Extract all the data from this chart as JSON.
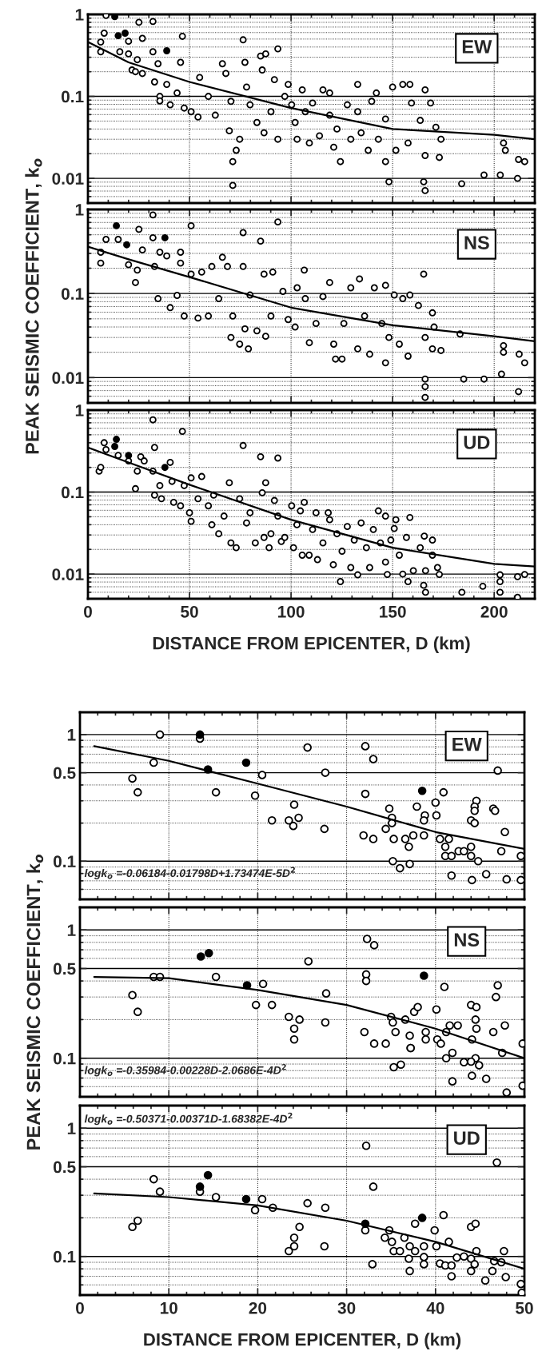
{
  "chart_data": [
    {
      "type": "scatter",
      "xlim": [
        0,
        220
      ],
      "xticks": [
        0,
        50,
        100,
        150,
        200
      ],
      "ylim": [
        0.005,
        1
      ],
      "yticks": [
        1,
        0.1,
        0.01
      ],
      "log": "y",
      "grid": true,
      "marker": "circle",
      "tick_labels": "y",
      "annotations": [
        "EW"
      ],
      "series": [
        {
          "type": "scatter",
          "color": "#ffffff",
          "x": [
            6.3,
            6.3,
            8,
            8.9,
            15.7,
            20,
            20,
            24.3,
            21.7,
            23.4,
            26.8,
            25.1,
            26.8,
            32,
            32,
            32.8,
            34.5,
            35.4,
            35.4,
            38.8,
            40.5,
            43.9,
            45.6,
            46.5,
            47.4,
            50.8,
            54.2,
            55,
            59.3,
            62.7,
            66.2,
            67.9,
            70.4,
            69.6,
            71.3,
            71.3,
            73,
            76.4,
            77.3,
            74.7,
            78.1,
            79.8,
            83.2,
            85,
            85.8,
            87.5,
            86.7,
            90.1,
            91.8,
            93.5,
            93.5,
            96.9,
            98.6,
            100.3,
            102,
            103,
            105.5,
            107,
            109,
            110.6,
            114,
            115.7,
            119,
            119,
            121,
            122.6,
            124.3,
            127.7,
            129.4,
            132.8,
            132.8,
            134.5,
            138,
            139.7,
            142,
            143,
            146.5,
            146.5,
            148.2,
            150,
            151.6,
            155,
            158.5,
            157.6,
            159.3,
            163.6,
            166,
            168.7,
            166,
            165.3,
            166,
            171.3,
            173.8,
            173,
            184,
            195,
            203,
            204.6,
            205.5,
            211.5,
            212,
            215
          ],
          "values": [
            0.46,
            0.35,
            0.59,
            0.97,
            0.35,
            0.47,
            0.33,
            0.28,
            0.21,
            0.2,
            0.19,
            0.8,
            0.51,
            0.82,
            0.35,
            0.15,
            0.25,
            0.1,
            0.088,
            0.14,
            0.079,
            0.11,
            0.26,
            0.54,
            0.072,
            0.065,
            0.056,
            0.17,
            0.1,
            0.059,
            0.25,
            0.19,
            0.087,
            0.038,
            0.016,
            0.0082,
            0.022,
            0.49,
            0.26,
            0.03,
            0.13,
            0.079,
            0.048,
            0.31,
            0.21,
            0.33,
            0.036,
            0.065,
            0.16,
            0.38,
            0.03,
            0.1,
            0.14,
            0.079,
            0.048,
            0.03,
            0.12,
            0.065,
            0.027,
            0.083,
            0.033,
            0.12,
            0.11,
            0.059,
            0.024,
            0.04,
            0.016,
            0.079,
            0.03,
            0.14,
            0.065,
            0.036,
            0.022,
            0.087,
            0.11,
            0.03,
            0.016,
            0.053,
            0.0091,
            0.13,
            0.022,
            0.14,
            0.14,
            0.027,
            0.083,
            0.051,
            0.12,
            0.083,
            0.019,
            0.0091,
            0.0071,
            0.042,
            0.03,
            0.018,
            0.0086,
            0.011,
            0.011,
            0.027,
            0.022,
            0.01,
            0.017,
            0.016
          ]
        },
        {
          "type": "scatter",
          "color": "#000000",
          "x": [
            13.2,
            14.9,
            18.3,
            38.8
          ],
          "values": [
            0.94,
            0.55,
            0.59,
            0.36
          ]
        },
        {
          "type": "line",
          "color": "#000000",
          "marker": "none",
          "x": [
            0,
            20,
            50,
            100,
            150,
            200,
            220
          ],
          "values": [
            0.46,
            0.26,
            0.15,
            0.072,
            0.04,
            0.034,
            0.03
          ]
        }
      ]
    },
    {
      "type": "scatter",
      "xlim": [
        0,
        220
      ],
      "xticks": [
        0,
        50,
        100,
        150,
        200
      ],
      "ylim": [
        0.005,
        1
      ],
      "yticks": [
        1,
        0.1,
        0.01
      ],
      "log": "y",
      "grid": true,
      "marker": "circle",
      "tick_labels": "y",
      "ylabel": "PEAK SEISMIC COEFFICIENT, k$_{o}$",
      "annotations": [
        "NS"
      ],
      "series": [
        {
          "type": "scatter",
          "color": "#ffffff",
          "x": [
            6.3,
            6.3,
            8.9,
            14.9,
            20,
            23.4,
            24.3,
            25.1,
            26.8,
            32,
            32,
            32.8,
            34.5,
            35.4,
            38.8,
            40.5,
            43.9,
            45.6,
            45.6,
            47.4,
            50.8,
            50.8,
            54.2,
            56,
            59.3,
            61,
            64.4,
            66.2,
            68.7,
            70.4,
            71.3,
            74.7,
            76.4,
            76.4,
            77.3,
            79,
            79.8,
            83.2,
            85,
            86.7,
            87.5,
            90.1,
            91,
            93.5,
            96,
            98.6,
            102,
            103,
            106.5,
            107,
            109,
            112.3,
            115.7,
            119,
            121,
            121.9,
            125.1,
            126,
            129.4,
            132.8,
            133.7,
            136.2,
            138.7,
            141,
            144.7,
            146.5,
            146.5,
            148.2,
            150.8,
            153.3,
            155,
            157.6,
            158.5,
            162.7,
            165.3,
            166,
            169.6,
            170.4,
            169.6,
            173.8,
            183.2,
            204.6,
            204.6,
            212.3,
            215,
            166,
            166,
            166,
            185,
            195,
            203.6,
            212
          ],
          "values": [
            0.31,
            0.23,
            0.44,
            0.44,
            0.22,
            0.135,
            0.19,
            0.58,
            0.33,
            0.86,
            0.46,
            0.21,
            0.087,
            0.31,
            0.28,
            0.068,
            0.095,
            0.31,
            0.23,
            0.054,
            0.64,
            0.17,
            0.051,
            0.18,
            0.054,
            0.21,
            0.087,
            0.27,
            0.21,
            0.03,
            0.054,
            0.025,
            0.53,
            0.21,
            0.038,
            0.022,
            0.096,
            0.036,
            0.42,
            0.17,
            0.031,
            0.054,
            0.18,
            0.71,
            0.106,
            0.049,
            0.04,
            0.117,
            0.19,
            0.087,
            0.026,
            0.044,
            0.092,
            0.135,
            0.025,
            0.0166,
            0.0166,
            0.044,
            0.117,
            0.022,
            0.149,
            0.054,
            0.019,
            0.117,
            0.044,
            0.125,
            0.015,
            0.03,
            0.096,
            0.025,
            0.087,
            0.018,
            0.096,
            0.072,
            0.17,
            0.03,
            0.059,
            0.04,
            0.022,
            0.021,
            0.033,
            0.024,
            0.02,
            0.019,
            0.015,
            0.0096,
            0.0078,
            0.0058,
            0.0096,
            0.0096,
            0.011,
            0.0068
          ]
        },
        {
          "type": "scatter",
          "color": "#000000",
          "x": [
            14,
            19.1,
            37.9
          ],
          "values": [
            0.64,
            0.38,
            0.46
          ]
        },
        {
          "type": "line",
          "color": "#000000",
          "marker": "none",
          "x": [
            0,
            20,
            50,
            100,
            150,
            200,
            220
          ],
          "values": [
            0.36,
            0.255,
            0.157,
            0.068,
            0.042,
            0.031,
            0.027
          ]
        }
      ]
    },
    {
      "type": "scatter",
      "xlim": [
        0,
        220
      ],
      "xticks": [
        0,
        50,
        100,
        150,
        200
      ],
      "ylim": [
        0.005,
        1
      ],
      "yticks": [
        1,
        0.1,
        0.01
      ],
      "log": "y",
      "grid": true,
      "marker": "circle",
      "xlabel": "DISTANCE FROM EPICENTER, D (km)",
      "annotations": [
        "UD"
      ],
      "series": [
        {
          "type": "scatter",
          "color": "#ffffff",
          "x": [
            5.5,
            6.3,
            8,
            8.9,
            14.9,
            20,
            23.4,
            24.3,
            26,
            27.7,
            32,
            32.8,
            32,
            32.8,
            35.4,
            36.2,
            40.5,
            41.4,
            42.2,
            45.6,
            46.5,
            47.4,
            50,
            50.8,
            50.8,
            56,
            54.2,
            59.3,
            61,
            61.9,
            64.4,
            67,
            69.6,
            70.4,
            73,
            74.7,
            76.4,
            78.1,
            79.8,
            82.4,
            85,
            85.8,
            87.5,
            86.7,
            89.2,
            90.1,
            91.8,
            93.5,
            93.5,
            95.2,
            96.9,
            100.3,
            101.2,
            102.9,
            104.6,
            105.5,
            106.5,
            108.9,
            110.6,
            112.3,
            113,
            115.7,
            118.3,
            119,
            120.8,
            122.6,
            124.3,
            125.1,
            127.7,
            129.4,
            131.1,
            132.8,
            134.5,
            137.1,
            138.7,
            140.5,
            143,
            144,
            146.5,
            146.5,
            147.4,
            149.1,
            150.8,
            151.6,
            153.3,
            155,
            156.8,
            157.6,
            158.5,
            160.2,
            163.6,
            165.6,
            166.2,
            165.3,
            166.2,
            169.6,
            169.6,
            172.1,
            173,
            184.1,
            194.4,
            202.9,
            202.9,
            202.9,
            211.5,
            215,
            211.5
          ],
          "values": [
            0.18,
            0.2,
            0.4,
            0.33,
            0.28,
            0.24,
            0.11,
            0.18,
            0.27,
            0.24,
            0.76,
            0.35,
            0.18,
            0.092,
            0.12,
            0.083,
            0.23,
            0.135,
            0.075,
            0.068,
            0.55,
            0.12,
            0.056,
            0.149,
            0.044,
            0.155,
            0.083,
            0.068,
            0.04,
            0.092,
            0.031,
            0.051,
            0.13,
            0.024,
            0.021,
            0.083,
            0.37,
            0.042,
            0.056,
            0.024,
            0.27,
            0.098,
            0.13,
            0.028,
            0.021,
            0.031,
            0.079,
            0.26,
            0.051,
            0.025,
            0.028,
            0.068,
            0.021,
            0.04,
            0.059,
            0.017,
            0.075,
            0.017,
            0.035,
            0.056,
            0.015,
            0.024,
            0.056,
            0.046,
            0.013,
            0.031,
            0.0081,
            0.019,
            0.038,
            0.012,
            0.026,
            0.0098,
            0.042,
            0.021,
            0.012,
            0.035,
            0.059,
            0.024,
            0.051,
            0.014,
            0.0099,
            0.026,
            0.036,
            0.046,
            0.017,
            0.01,
            0.028,
            0.0081,
            0.049,
            0.011,
            0.021,
            0.029,
            0.011,
            0.0073,
            0.006,
            0.026,
            0.017,
            0.012,
            0.0099,
            0.006,
            0.0071,
            0.0098,
            0.0081,
            0.006,
            0.0093,
            0.0099,
            0.0052
          ]
        },
        {
          "type": "scatter",
          "color": "#000000",
          "x": [
            14,
            13.2,
            20,
            37.9
          ],
          "values": [
            0.44,
            0.36,
            0.28,
            0.2
          ]
        },
        {
          "type": "line",
          "color": "#000000",
          "marker": "none",
          "x": [
            0,
            20,
            50,
            100,
            150,
            200,
            220
          ],
          "values": [
            0.35,
            0.23,
            0.123,
            0.046,
            0.021,
            0.0133,
            0.0124
          ]
        }
      ]
    },
    {
      "type": "scatter",
      "xlim": [
        0,
        50
      ],
      "xticks": [
        0,
        10,
        20,
        30,
        40,
        50
      ],
      "ylim": [
        0.05,
        1.5
      ],
      "yticks": [
        1,
        0.5,
        0.1
      ],
      "log": "y",
      "grid": true,
      "marker": "circle",
      "tick_labels": "y",
      "annotations": [
        "EW",
        "logk$_{o}$ =-0.06184-0.01798D+1.73474E-5D$^{2}$"
      ],
      "series": [
        {
          "type": "scatter",
          "color": "#ffffff",
          "x": [
            9.0,
            5.9,
            6.5,
            8.3,
            13.5,
            15.3,
            19.7,
            20.5,
            21.6,
            23.5,
            24.1,
            24.6,
            24.0,
            25.6,
            27.6,
            27.5,
            32.1,
            33.0,
            32.1,
            31.9,
            33.0,
            34.4,
            34.8,
            35.1,
            35.1,
            35.3,
            35.2,
            36.0,
            36.6,
            37.0,
            37.5,
            37.1,
            37.9,
            38.8,
            38.7,
            38.7,
            40.0,
            40.1,
            40.9,
            40.5,
            41.5,
            41.1,
            41.1,
            41.8,
            41.8,
            42.6,
            43.2,
            44.0,
            44.0,
            44.8,
            44.1,
            44.6,
            44.4,
            44.4,
            44.0,
            44.4,
            45.7,
            46.5,
            46.7,
            47.0,
            47.8,
            47.4,
            48.0,
            49.6,
            49.6
          ],
          "values": [
            1.0,
            0.45,
            0.35,
            0.6,
            0.93,
            0.35,
            0.33,
            0.48,
            0.21,
            0.21,
            0.28,
            0.22,
            0.19,
            0.79,
            0.5,
            0.18,
            0.81,
            0.64,
            0.34,
            0.16,
            0.15,
            0.18,
            0.26,
            0.22,
            0.2,
            0.15,
            0.1,
            0.088,
            0.15,
            0.13,
            0.16,
            0.095,
            0.27,
            0.23,
            0.21,
            0.16,
            0.29,
            0.23,
            0.35,
            0.15,
            0.15,
            0.13,
            0.11,
            0.11,
            0.077,
            0.12,
            0.12,
            0.13,
            0.11,
            0.1,
            0.071,
            0.3,
            0.27,
            0.25,
            0.21,
            0.2,
            0.079,
            0.26,
            0.25,
            0.52,
            0.17,
            0.12,
            0.072,
            0.11,
            0.071
          ]
        },
        {
          "type": "scatter",
          "color": "#000000",
          "x": [
            13.5,
            14.4,
            18.7,
            38.5
          ],
          "values": [
            1.0,
            0.53,
            0.6,
            0.36
          ]
        },
        {
          "type": "line",
          "color": "#000000",
          "marker": "none",
          "x": [
            1.6,
            10,
            20,
            30,
            40,
            50
          ],
          "values": [
            0.81,
            0.62,
            0.41,
            0.27,
            0.17,
            0.125
          ]
        }
      ]
    },
    {
      "type": "scatter",
      "xlim": [
        0,
        50
      ],
      "xticks": [
        0,
        10,
        20,
        30,
        40,
        50
      ],
      "ylim": [
        0.05,
        1.5
      ],
      "yticks": [
        1,
        0.5,
        0.1
      ],
      "log": "y",
      "grid": true,
      "marker": "circle",
      "tick_labels": "y",
      "ylabel": "PEAK SEISMIC COEFFICIENT, k$_{o}$",
      "annotations": [
        "NS",
        "logk$_{o}$ =-0.35984-0.00228D-2.0686E-4D$^{2}$"
      ],
      "series": [
        {
          "type": "scatter",
          "color": "#ffffff",
          "x": [
            5.9,
            6.5,
            8.3,
            9.0,
            15.3,
            19.8,
            20.6,
            21.6,
            23.5,
            24.7,
            24.1,
            24.1,
            25.7,
            27.7,
            27.6,
            32.3,
            33.1,
            32.2,
            32.2,
            32.0,
            33.1,
            34.4,
            35.0,
            35.2,
            35.5,
            35.3,
            36.1,
            36.6,
            37.1,
            37.2,
            37.2,
            37.6,
            38.0,
            38.9,
            38.9,
            40.1,
            40.2,
            40.6,
            41.0,
            41.2,
            41.6,
            42.5,
            41.2,
            41.9,
            41.9,
            43.2,
            44.0,
            44.6,
            44.5,
            44.6,
            44.1,
            44.5,
            44.0,
            44.9,
            44.1,
            45.7,
            46.5,
            46.8,
            47.0,
            47.8,
            47.5,
            48.0,
            49.8,
            49.8
          ],
          "values": [
            0.31,
            0.23,
            0.43,
            0.43,
            0.43,
            0.26,
            0.38,
            0.26,
            0.21,
            0.2,
            0.17,
            0.14,
            0.57,
            0.32,
            0.19,
            0.85,
            0.76,
            0.45,
            0.4,
            0.16,
            0.13,
            0.13,
            0.21,
            0.19,
            0.16,
            0.085,
            0.089,
            0.2,
            0.15,
            0.12,
            0.12,
            0.23,
            0.25,
            0.16,
            0.14,
            0.24,
            0.14,
            0.13,
            0.36,
            0.16,
            0.18,
            0.18,
            0.1,
            0.11,
            0.066,
            0.093,
            0.26,
            0.25,
            0.2,
            0.17,
            0.14,
            0.1,
            0.094,
            0.088,
            0.073,
            0.069,
            0.16,
            0.3,
            0.37,
            0.18,
            0.11,
            0.054,
            0.13,
            0.061
          ]
        },
        {
          "type": "scatter",
          "color": "#000000",
          "x": [
            13.6,
            14.5,
            18.8,
            38.7
          ],
          "values": [
            0.62,
            0.66,
            0.37,
            0.44
          ]
        },
        {
          "type": "line",
          "color": "#000000",
          "marker": "none",
          "x": [
            1.6,
            10,
            20,
            30,
            40,
            50
          ],
          "values": [
            0.43,
            0.42,
            0.34,
            0.26,
            0.17,
            0.1
          ]
        }
      ]
    },
    {
      "type": "scatter",
      "xlim": [
        0,
        50
      ],
      "xticks": [
        0,
        10,
        20,
        30,
        40,
        50
      ],
      "ylim": [
        0.05,
        1.5
      ],
      "yticks": [
        1,
        0.5,
        0.1
      ],
      "log": "y",
      "grid": true,
      "marker": "circle",
      "xlabel": "DISTANCE FROM EPICENTER, D (km)",
      "annotations": [
        "UD",
        "logk$_{o}$ =-0.50371-0.00371D-1.68382E-4D$^{2}$"
      ],
      "series": [
        {
          "type": "scatter",
          "color": "#ffffff",
          "x": [
            5.9,
            6.5,
            8.3,
            9.0,
            13.5,
            15.3,
            19.7,
            20.5,
            21.7,
            23.5,
            24.1,
            24.1,
            24.7,
            25.6,
            27.6,
            27.5,
            32.2,
            33.0,
            32.1,
            32.9,
            34.3,
            34.8,
            35.1,
            35.3,
            36.0,
            36.5,
            37.1,
            37.0,
            37.1,
            37.7,
            37.7,
            38.7,
            38.7,
            38.7,
            39.9,
            40.1,
            40.9,
            41.5,
            40.5,
            41.1,
            41.8,
            41.8,
            42.4,
            43.2,
            44.0,
            44.5,
            44.0,
            44.6,
            44.4,
            44.0,
            45.6,
            46.4,
            46.6,
            46.9,
            47.4,
            47.7,
            47.9,
            49.6,
            49.7
          ],
          "values": [
            0.17,
            0.19,
            0.4,
            0.32,
            0.32,
            0.29,
            0.23,
            0.28,
            0.24,
            0.11,
            0.12,
            0.14,
            0.17,
            0.26,
            0.24,
            0.12,
            0.73,
            0.35,
            0.16,
            0.087,
            0.14,
            0.16,
            0.13,
            0.11,
            0.11,
            0.14,
            0.12,
            0.096,
            0.077,
            0.18,
            0.11,
            0.12,
            0.099,
            0.087,
            0.16,
            0.12,
            0.21,
            0.13,
            0.088,
            0.085,
            0.085,
            0.07,
            0.098,
            0.1,
            0.17,
            0.18,
            0.096,
            0.11,
            0.087,
            0.077,
            0.065,
            0.077,
            0.092,
            0.54,
            0.09,
            0.11,
            0.069,
            0.061,
            0.052
          ]
        },
        {
          "type": "scatter",
          "color": "#000000",
          "x": [
            13.5,
            14.4,
            18.7,
            32.1,
            38.5
          ],
          "values": [
            0.35,
            0.43,
            0.28,
            0.18,
            0.2
          ]
        },
        {
          "type": "line",
          "color": "#000000",
          "marker": "none",
          "x": [
            1.6,
            10,
            20,
            30,
            40,
            50
          ],
          "values": [
            0.31,
            0.29,
            0.25,
            0.19,
            0.13,
            0.08
          ]
        }
      ]
    }
  ]
}
